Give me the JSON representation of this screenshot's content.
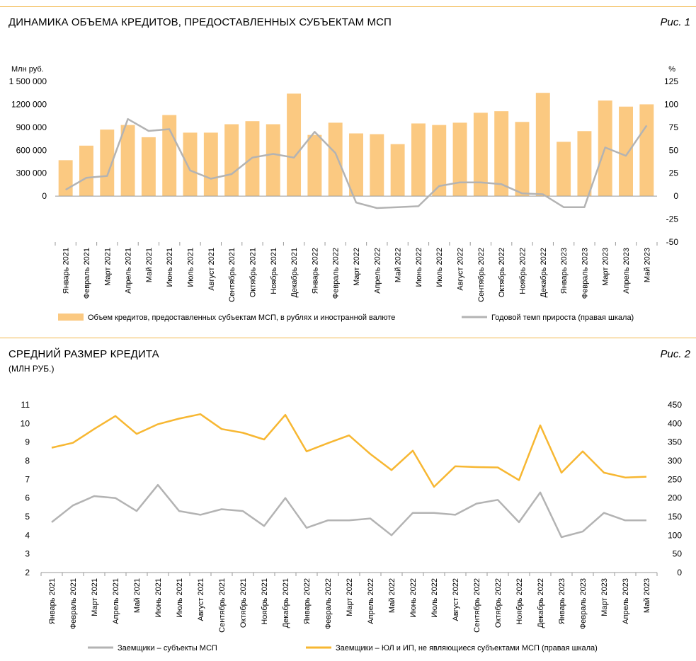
{
  "chart_data": [
    {
      "type": "bar",
      "title": "ДИНАМИКА ОБЪЕМА КРЕДИТОВ, ПРЕДОСТАВЛЕННЫХ СУБЪЕКТАМ МСП",
      "figure_label": "Рис. 1",
      "ylabel_left": "Млн руб.",
      "ylabel_right": "%",
      "ylim_left": [
        -600000,
        1500000
      ],
      "ylim_right": [
        -50,
        125
      ],
      "yticks_left": [
        0,
        300000,
        600000,
        900000,
        1200000,
        1500000
      ],
      "yticks_left_labels": [
        "0",
        "300 000",
        "600 000",
        "900 000",
        "1200 000",
        "1 500 000"
      ],
      "yticks_right": [
        -50,
        -25,
        0,
        25,
        50,
        75,
        100,
        125
      ],
      "yticks_right_labels": [
        "-50",
        "-25",
        "0",
        "25",
        "50",
        "75",
        "100",
        "125"
      ],
      "categories": [
        "Январь 2021",
        "Февраль 2021",
        "Март 2021",
        "Апрель 2021",
        "Май 2021",
        "Июнь 2021",
        "Июль 2021",
        "Август 2021",
        "Сентябрь 2021",
        "Октябрь 2021",
        "Ноябрь 2021",
        "Декабрь 2021",
        "Январь 2022",
        "Февраль 2022",
        "Март 2022",
        "Апрель 2022",
        "Май 2022",
        "Июнь 2022",
        "Июль 2022",
        "Август 2022",
        "Сентябрь 2022",
        "Октябрь 2022",
        "Ноябрь 2022",
        "Декабрь 2022",
        "Январь 2023",
        "Февраль 2023",
        "Март 2023",
        "Апрель 2023",
        "Май 2023"
      ],
      "series": [
        {
          "name": "Объем кредитов, предоставленных субъектам МСП, в рублях и иностранной валюте",
          "kind": "bar",
          "axis": "left",
          "color": "#fbc981",
          "values": [
            470000,
            660000,
            870000,
            930000,
            770000,
            1060000,
            830000,
            830000,
            940000,
            980000,
            940000,
            1340000,
            800000,
            960000,
            820000,
            810000,
            680000,
            950000,
            930000,
            960000,
            1090000,
            1110000,
            970000,
            1350000,
            710000,
            850000,
            1250000,
            1170000,
            1200000
          ]
        },
        {
          "name": "Годовой темп прироста (правая шкала)",
          "kind": "line",
          "axis": "right",
          "color": "#b3b3b3",
          "values": [
            7,
            20,
            22,
            84,
            71,
            73,
            28,
            19,
            24,
            42,
            46,
            42,
            70,
            47,
            -7,
            -13,
            -12,
            -11,
            11,
            15,
            15,
            13,
            3,
            2,
            -12,
            -12,
            53,
            44,
            77
          ]
        }
      ]
    },
    {
      "type": "line",
      "title": "СРЕДНИЙ РАЗМЕР КРЕДИТА",
      "subtitle": "(МЛН РУБ.)",
      "figure_label": "Рис. 2",
      "ylim_left": [
        2,
        11
      ],
      "ylim_right": [
        0,
        450
      ],
      "yticks_left": [
        2,
        3,
        4,
        5,
        6,
        7,
        8,
        9,
        10,
        11
      ],
      "yticks_left_labels": [
        "2",
        "3",
        "4",
        "5",
        "6",
        "7",
        "8",
        "9",
        "10",
        "11"
      ],
      "yticks_right": [
        0,
        50,
        100,
        150,
        200,
        250,
        300,
        350,
        400,
        450
      ],
      "yticks_right_labels": [
        "0",
        "50",
        "100",
        "150",
        "200",
        "250",
        "300",
        "350",
        "400",
        "450"
      ],
      "categories": [
        "Январь 2021",
        "Февраль 2021",
        "Март 2021",
        "Апрель 2021",
        "Май 2021",
        "Июнь 2021",
        "Июль 2021",
        "Август 2021",
        "Сентябрь 2021",
        "Октябрь 2021",
        "Ноябрь 2021",
        "Декабрь 2021",
        "Январь 2022",
        "Февраль 2022",
        "Март 2022",
        "Апрель 2022",
        "Май 2022",
        "Июнь 2022",
        "Июль 2022",
        "Август 2022",
        "Сентябрь 2022",
        "Октябрь 2022",
        "Ноябрь 2022",
        "Декабрь 2022",
        "Январь 2023",
        "Февраль 2023",
        "Март 2023",
        "Апрель 2023",
        "Май 2023"
      ],
      "series": [
        {
          "name": "Заемщики – субъекты МСП",
          "axis": "left",
          "color": "#b3b3b3",
          "values": [
            4.7,
            5.6,
            6.1,
            6.0,
            5.3,
            6.7,
            5.3,
            5.1,
            5.4,
            5.3,
            4.5,
            6.0,
            4.4,
            4.8,
            4.8,
            4.9,
            4.0,
            5.2,
            5.2,
            5.1,
            5.7,
            5.9,
            4.7,
            6.3,
            3.9,
            4.2,
            5.2,
            4.8,
            4.8
          ]
        },
        {
          "name": "Заемщики – ЮЛ и ИП, не являющиеся субъектами МСП (правая шкала)",
          "axis": "right",
          "color": "#f7b732",
          "values": [
            335,
            348,
            385,
            420,
            372,
            398,
            413,
            425,
            385,
            375,
            357,
            423,
            325,
            347,
            368,
            318,
            275,
            327,
            230,
            285,
            283,
            282,
            248,
            395,
            268,
            325,
            268,
            255,
            257
          ]
        }
      ]
    }
  ]
}
